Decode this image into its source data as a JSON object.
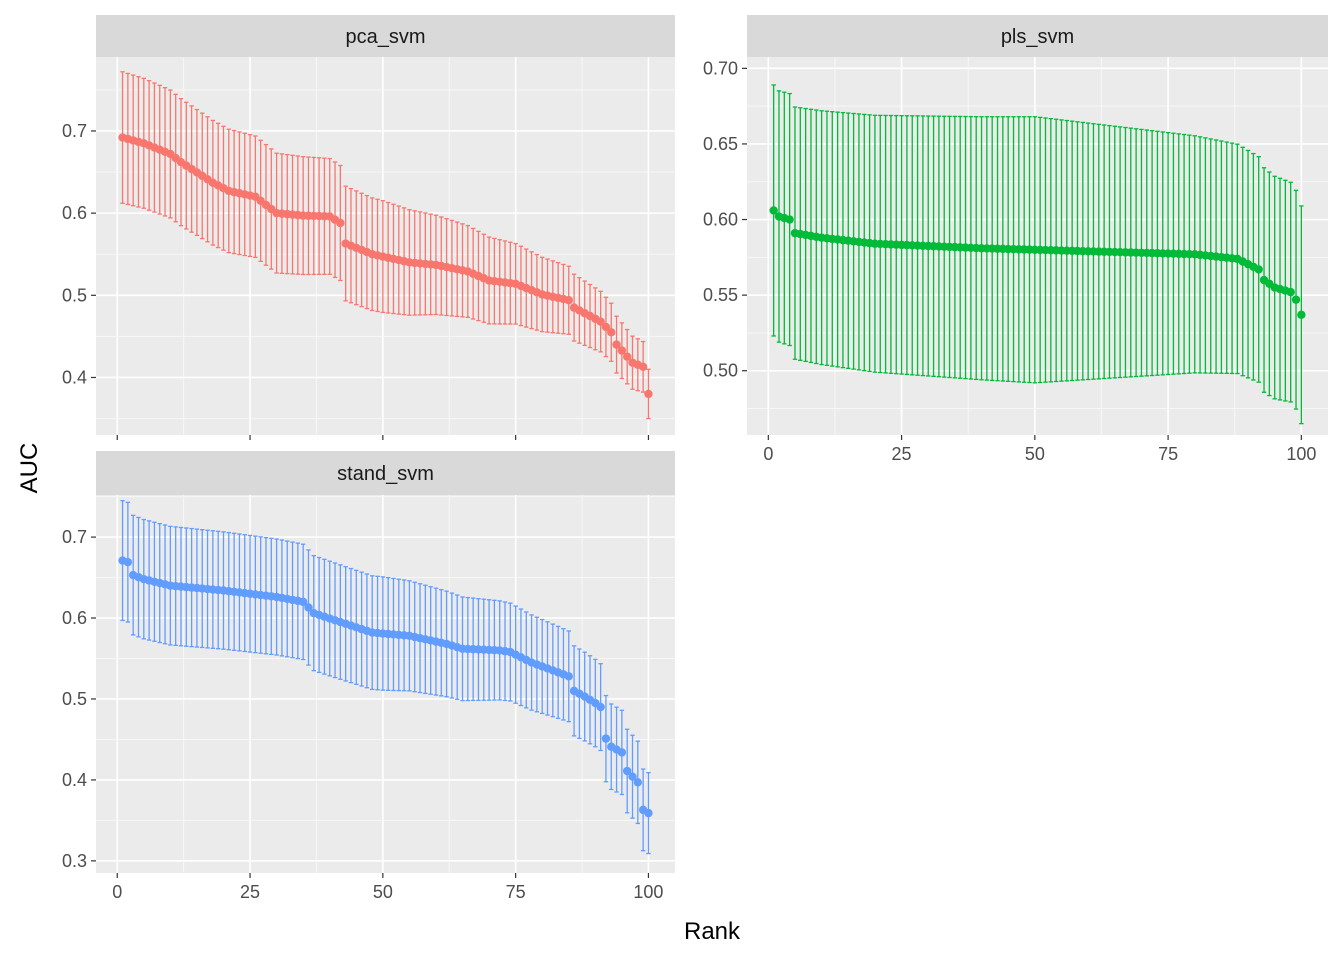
{
  "chart_data": {
    "type": "scatter",
    "layout": "faceted (facet_wrap), free y scales, shared x axis",
    "xlabel": "Rank",
    "ylabel": "AUC",
    "x_ticks": [
      0,
      25,
      50,
      75,
      100
    ],
    "xlim": [
      -4,
      105
    ],
    "error_bars": true,
    "point_size_note": "points with vertical error bars per rank",
    "panels": [
      {
        "name": "pca_svm",
        "color": "#F8766D",
        "ylim": [
          0.33,
          0.79
        ],
        "y_ticks": [
          0.4,
          0.5,
          0.6,
          0.7
        ],
        "y_tick_labels": [
          "0.4",
          "0.5",
          "0.6",
          "0.7"
        ],
        "x_tick_labels_shown": false,
        "rank_range": [
          1,
          100
        ],
        "anchors": [
          [
            1,
            0.692
          ],
          [
            5,
            0.685
          ],
          [
            10,
            0.672
          ],
          [
            12,
            0.662
          ],
          [
            18,
            0.637
          ],
          [
            21,
            0.627
          ],
          [
            26,
            0.62
          ],
          [
            30,
            0.6
          ],
          [
            35,
            0.597
          ],
          [
            40,
            0.596
          ],
          [
            42,
            0.588
          ],
          [
            43,
            0.563
          ],
          [
            48,
            0.55
          ],
          [
            55,
            0.54
          ],
          [
            60,
            0.537
          ],
          [
            66,
            0.529
          ],
          [
            70,
            0.518
          ],
          [
            75,
            0.514
          ],
          [
            80,
            0.501
          ],
          [
            85,
            0.494
          ],
          [
            86,
            0.485
          ],
          [
            91,
            0.468
          ],
          [
            93,
            0.455
          ],
          [
            94,
            0.44
          ],
          [
            97,
            0.418
          ],
          [
            99,
            0.413
          ],
          [
            100,
            0.38
          ]
        ],
        "halfwidth_anchors": [
          [
            1,
            0.08
          ],
          [
            50,
            0.068
          ],
          [
            100,
            0.03
          ]
        ]
      },
      {
        "name": "pls_svm",
        "color": "#00BA38",
        "ylim": [
          0.4575,
          0.7075
        ],
        "y_ticks": [
          0.5,
          0.55,
          0.6,
          0.65,
          0.7
        ],
        "y_tick_labels": [
          "0.50",
          "0.55",
          "0.60",
          "0.65",
          "0.70"
        ],
        "x_tick_labels_shown": true,
        "rank_range": [
          1,
          100
        ],
        "anchors": [
          [
            1,
            0.606
          ],
          [
            2,
            0.602
          ],
          [
            4,
            0.6
          ],
          [
            5,
            0.591
          ],
          [
            10,
            0.588
          ],
          [
            20,
            0.584
          ],
          [
            40,
            0.581
          ],
          [
            60,
            0.579
          ],
          [
            80,
            0.577
          ],
          [
            88,
            0.574
          ],
          [
            92,
            0.567
          ],
          [
            93,
            0.56
          ],
          [
            95,
            0.555
          ],
          [
            97,
            0.553
          ],
          [
            98,
            0.552
          ],
          [
            99,
            0.547
          ],
          [
            100,
            0.537
          ]
        ],
        "halfwidth_anchors": [
          [
            1,
            0.083
          ],
          [
            50,
            0.088
          ],
          [
            100,
            0.072
          ]
        ]
      },
      {
        "name": "stand_svm",
        "color": "#619CFF",
        "ylim": [
          0.285,
          0.752
        ],
        "y_ticks": [
          0.3,
          0.4,
          0.5,
          0.6,
          0.7
        ],
        "y_tick_labels": [
          "0.3",
          "0.4",
          "0.5",
          "0.6",
          "0.7"
        ],
        "x_tick_labels_shown": true,
        "rank_range": [
          1,
          100
        ],
        "anchors": [
          [
            1,
            0.671
          ],
          [
            2,
            0.669
          ],
          [
            3,
            0.653
          ],
          [
            5,
            0.648
          ],
          [
            10,
            0.64
          ],
          [
            20,
            0.634
          ],
          [
            30,
            0.626
          ],
          [
            35,
            0.62
          ],
          [
            37,
            0.606
          ],
          [
            42,
            0.595
          ],
          [
            48,
            0.582
          ],
          [
            55,
            0.578
          ],
          [
            62,
            0.568
          ],
          [
            65,
            0.562
          ],
          [
            72,
            0.56
          ],
          [
            74,
            0.558
          ],
          [
            78,
            0.545
          ],
          [
            85,
            0.528
          ],
          [
            86,
            0.51
          ],
          [
            88,
            0.503
          ],
          [
            90,
            0.495
          ],
          [
            91,
            0.49
          ],
          [
            92,
            0.451
          ],
          [
            93,
            0.441
          ],
          [
            95,
            0.434
          ],
          [
            96,
            0.411
          ],
          [
            98,
            0.397
          ],
          [
            99,
            0.363
          ],
          [
            100,
            0.359
          ]
        ],
        "halfwidth_anchors": [
          [
            1,
            0.074
          ],
          [
            50,
            0.07
          ],
          [
            100,
            0.05
          ]
        ]
      }
    ]
  }
}
